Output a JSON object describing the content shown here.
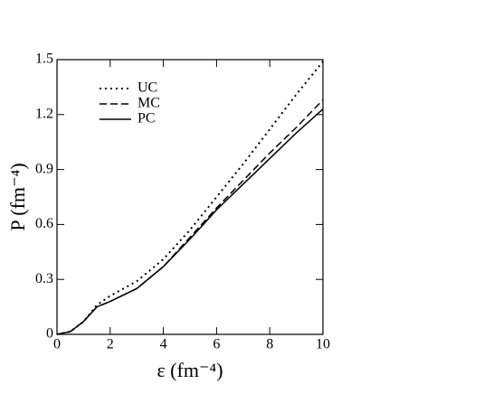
{
  "chart_data": {
    "type": "line",
    "x_label": "ε (fm⁻⁴)",
    "y_label": "P (fm⁻⁴)",
    "x": [
      0,
      0.5,
      1,
      1.5,
      2,
      3,
      4,
      5,
      6,
      7,
      8,
      9,
      10
    ],
    "series": [
      {
        "name": "UC",
        "color": "#000000",
        "dash": "dotted",
        "values": [
          0,
          0.015,
          0.07,
          0.16,
          0.21,
          0.29,
          0.41,
          0.57,
          0.75,
          0.93,
          1.12,
          1.31,
          1.49
        ]
      },
      {
        "name": "MC",
        "color": "#000000",
        "dash": "dashed",
        "values": [
          0,
          0.015,
          0.07,
          0.15,
          0.18,
          0.25,
          0.37,
          0.53,
          0.69,
          0.84,
          0.99,
          1.13,
          1.28
        ]
      },
      {
        "name": "PC",
        "color": "#000000",
        "dash": "solid",
        "values": [
          0,
          0.015,
          0.07,
          0.15,
          0.18,
          0.25,
          0.37,
          0.52,
          0.68,
          0.82,
          0.96,
          1.1,
          1.23
        ]
      }
    ],
    "xlim": [
      0,
      10
    ],
    "xticks": [
      0,
      2,
      4,
      6,
      8,
      10
    ],
    "ylim": [
      0,
      1.5
    ],
    "yticks": [
      0,
      0.3,
      0.6,
      0.9,
      1.2,
      1.5
    ],
    "legend": "upper left",
    "grid": false
  }
}
